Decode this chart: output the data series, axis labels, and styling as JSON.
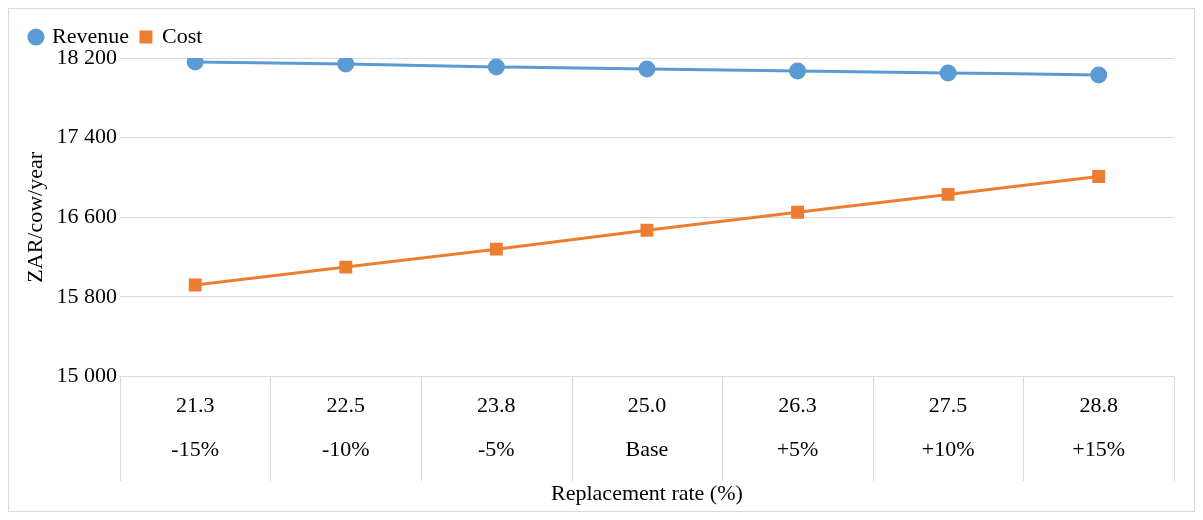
{
  "chart_data": {
    "type": "line",
    "xlabel": "Replacement rate (%)",
    "ylabel": "ZAR/cow/year",
    "categories": [
      "21.3\n-15%",
      "22.5\n-10%",
      "23.8\n-5%",
      "25.0\nBase",
      "26.3\n+5%",
      "27.5\n+10%",
      "28.8\n+15%"
    ],
    "series": [
      {
        "name": "Revenue",
        "color": "#5b9bd5",
        "marker": "circle",
        "values": [
          18160,
          18140,
          18110,
          18090,
          18070,
          18050,
          18030
        ]
      },
      {
        "name": "Cost",
        "color": "#ed7d31",
        "marker": "square",
        "values": [
          15920,
          16100,
          16280,
          16470,
          16650,
          16830,
          17010
        ]
      }
    ],
    "ylim": [
      15000,
      18200
    ],
    "yticks": [
      {
        "value": 15000,
        "label": "15 000"
      },
      {
        "value": 15800,
        "label": "15 800"
      },
      {
        "value": 16600,
        "label": "16 600"
      },
      {
        "value": 17400,
        "label": "17 400"
      },
      {
        "value": 18200,
        "label": "18 200"
      }
    ],
    "grid": "y",
    "legend": "top left"
  }
}
